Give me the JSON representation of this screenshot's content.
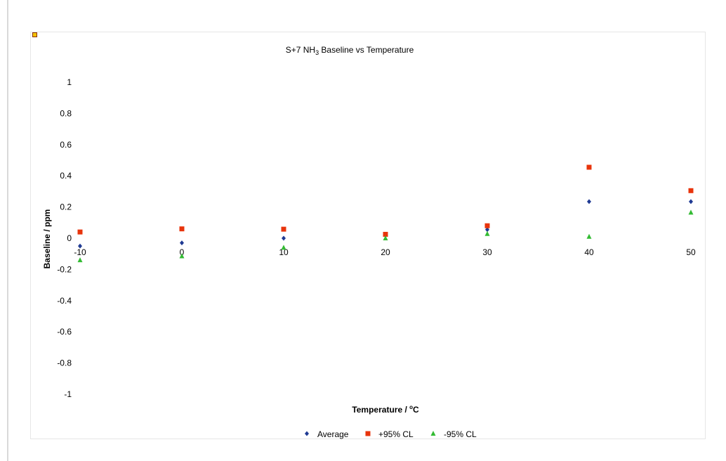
{
  "chart_data": {
    "type": "scatter",
    "title_prefix": "S+7 NH",
    "title_subscript": "3",
    "title_suffix": " Baseline vs Temperature",
    "xlabel": "Temperature / ",
    "xlabel_sup": "o",
    "xlabel_unit": "C",
    "ylabel": "Baseline / ppm",
    "xlim": [
      -10,
      50
    ],
    "ylim": [
      -1,
      1
    ],
    "x_ticks": [
      -10,
      0,
      10,
      20,
      30,
      40,
      50
    ],
    "y_ticks": [
      1,
      0.8,
      0.6,
      0.4,
      0.2,
      0,
      -0.2,
      -0.4,
      -0.6,
      -0.8,
      -1
    ],
    "grid": false,
    "legend_position": "bottom",
    "x": [
      -10,
      0,
      10,
      20,
      30,
      40,
      50
    ],
    "series": [
      {
        "name": "Average",
        "values": [
          -0.05,
          -0.03,
          0.0,
          0.02,
          0.055,
          0.235,
          0.235
        ],
        "color": "#1f3a93",
        "marker": "diamond"
      },
      {
        "name": "+95% CL",
        "values": [
          0.04,
          0.06,
          0.058,
          0.025,
          0.08,
          0.455,
          0.305
        ],
        "color": "#e8340c",
        "marker": "square"
      },
      {
        "name": "-95% CL",
        "values": [
          -0.14,
          -0.115,
          -0.06,
          0.0,
          0.028,
          0.01,
          0.165
        ],
        "color": "#33bb33",
        "marker": "triangle"
      }
    ]
  }
}
